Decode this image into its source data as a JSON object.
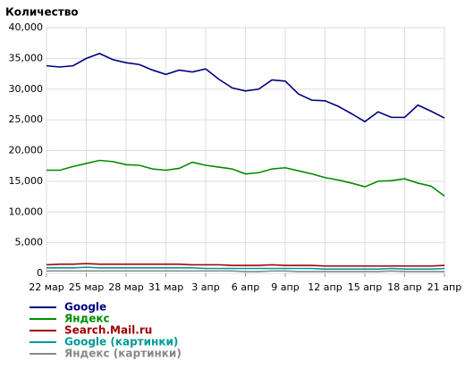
{
  "chart_data": {
    "type": "line",
    "title": "Количество",
    "categories": [
      "22 мар",
      null,
      null,
      "25 мар",
      null,
      null,
      "28 мар",
      null,
      null,
      "31 мар",
      null,
      null,
      "3 апр",
      null,
      null,
      "6 апр",
      null,
      null,
      "9 апр",
      null,
      null,
      "12 апр",
      null,
      null,
      "15 апр",
      null,
      null,
      "18 апр",
      null,
      null,
      "21 апр"
    ],
    "series": [
      {
        "name": "Google",
        "color": "#000080",
        "values": [
          33800,
          33600,
          33800,
          35000,
          35800,
          34800,
          34300,
          34000,
          33100,
          32400,
          33100,
          32800,
          33300,
          31600,
          30200,
          29700,
          30000,
          31500,
          31300,
          29200,
          28200,
          28100,
          27200,
          26000,
          24700,
          26300,
          25400,
          25400,
          27400,
          26400,
          25300
        ]
      },
      {
        "name": "Яндекс",
        "color": "#008c00",
        "values": [
          16800,
          16800,
          17400,
          17900,
          18400,
          18200,
          17700,
          17600,
          17000,
          16800,
          17100,
          18100,
          17600,
          17300,
          17000,
          16200,
          16400,
          17000,
          17200,
          16700,
          16200,
          15600,
          15200,
          14700,
          14100,
          15000,
          15100,
          15400,
          14700,
          14200,
          12600
        ]
      },
      {
        "name": "Search.Mail.ru",
        "color": "#a00000",
        "values": [
          1400,
          1500,
          1500,
          1600,
          1500,
          1500,
          1500,
          1500,
          1500,
          1500,
          1500,
          1400,
          1400,
          1400,
          1300,
          1300,
          1300,
          1400,
          1300,
          1300,
          1300,
          1200,
          1200,
          1200,
          1200,
          1200,
          1200,
          1200,
          1200,
          1200,
          1300
        ]
      },
      {
        "name": "Google (картинки)",
        "color": "#009999",
        "values": [
          900,
          900,
          900,
          1000,
          900,
          900,
          900,
          900,
          900,
          900,
          900,
          900,
          800,
          800,
          800,
          800,
          800,
          800,
          800,
          800,
          800,
          700,
          700,
          700,
          700,
          700,
          800,
          700,
          700,
          700,
          800
        ]
      },
      {
        "name": "Яндекс (картинки)",
        "color": "#888888",
        "values": [
          400,
          400,
          400,
          400,
          400,
          400,
          400,
          400,
          400,
          400,
          400,
          400,
          400,
          400,
          400,
          300,
          300,
          400,
          400,
          300,
          300,
          300,
          300,
          300,
          300,
          300,
          400,
          300,
          300,
          300,
          300
        ]
      }
    ],
    "ylim": [
      0,
      40000
    ],
    "yticks": [
      0,
      {
        "value": 5000,
        "label": "5,000"
      },
      {
        "value": 10000,
        "label": "10,000"
      },
      {
        "value": 15000,
        "label": "15,000"
      },
      {
        "value": 20000,
        "label": "20,000"
      },
      {
        "value": 25000,
        "label": "25,000"
      },
      {
        "value": 30000,
        "label": "30,000"
      },
      {
        "value": 35000,
        "label": "35,000"
      },
      {
        "value": 40000,
        "label": "40,000"
      }
    ],
    "grid": true
  }
}
